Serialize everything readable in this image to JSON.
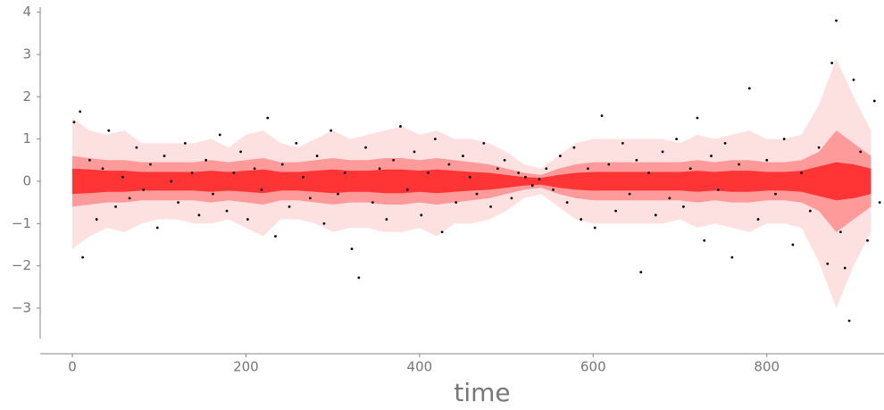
{
  "chart_data": {
    "type": "scatter",
    "x_label": "time",
    "xlim": [
      -37,
      935
    ],
    "ylim": [
      -3.72,
      4.12
    ],
    "xticks": [
      0,
      200,
      400,
      600,
      800
    ],
    "yticks": [
      {
        "value": -3,
        "label": "−3"
      },
      {
        "value": -2,
        "label": "−2"
      },
      {
        "value": -1,
        "label": "−1"
      },
      0,
      1,
      2,
      3,
      4
    ],
    "band_x": [
      0,
      20,
      40,
      60,
      80,
      100,
      120,
      140,
      160,
      180,
      200,
      220,
      240,
      260,
      280,
      300,
      320,
      340,
      360,
      380,
      400,
      420,
      440,
      460,
      480,
      500,
      520,
      540,
      560,
      580,
      600,
      620,
      640,
      660,
      680,
      700,
      720,
      740,
      760,
      780,
      800,
      820,
      840,
      860,
      880,
      900,
      920
    ],
    "bands": [
      {
        "color": "#fde0e0",
        "upper": [
          1.5,
          1.2,
          1.1,
          1.2,
          0.9,
          0.9,
          0.9,
          0.9,
          1.0,
          0.8,
          1.1,
          1.2,
          0.9,
          0.8,
          1.0,
          1.2,
          1.0,
          1.1,
          1.2,
          1.3,
          1.1,
          1.2,
          1.0,
          1.0,
          0.9,
          0.7,
          0.4,
          0.3,
          0.6,
          0.9,
          1.0,
          1.0,
          1.0,
          1.0,
          1.0,
          0.9,
          1.1,
          1.0,
          1.1,
          1.2,
          1.0,
          1.0,
          1.1,
          1.8,
          2.9,
          2.0,
          1.2
        ],
        "lower": [
          -1.6,
          -1.3,
          -1.1,
          -1.2,
          -1.0,
          -0.9,
          -0.9,
          -1.0,
          -1.0,
          -0.9,
          -1.1,
          -1.3,
          -0.9,
          -0.9,
          -1.0,
          -1.2,
          -1.1,
          -1.1,
          -1.2,
          -1.2,
          -1.1,
          -1.3,
          -1.0,
          -1.0,
          -0.9,
          -0.7,
          -0.4,
          -0.3,
          -0.6,
          -0.9,
          -1.0,
          -1.0,
          -1.0,
          -1.0,
          -1.0,
          -0.9,
          -1.1,
          -1.0,
          -1.1,
          -1.2,
          -1.0,
          -1.0,
          -1.1,
          -1.9,
          -3.0,
          -2.0,
          -1.2
        ]
      },
      {
        "color": "#ff9a9a",
        "upper": [
          0.6,
          0.55,
          0.5,
          0.5,
          0.45,
          0.45,
          0.45,
          0.45,
          0.5,
          0.45,
          0.5,
          0.55,
          0.45,
          0.45,
          0.5,
          0.55,
          0.5,
          0.5,
          0.55,
          0.55,
          0.5,
          0.55,
          0.5,
          0.45,
          0.4,
          0.3,
          0.2,
          0.15,
          0.3,
          0.4,
          0.45,
          0.45,
          0.45,
          0.45,
          0.45,
          0.45,
          0.5,
          0.45,
          0.5,
          0.5,
          0.45,
          0.45,
          0.5,
          0.7,
          1.2,
          0.9,
          0.6
        ],
        "lower": [
          -0.6,
          -0.55,
          -0.5,
          -0.5,
          -0.45,
          -0.45,
          -0.45,
          -0.45,
          -0.5,
          -0.45,
          -0.5,
          -0.55,
          -0.45,
          -0.45,
          -0.5,
          -0.55,
          -0.5,
          -0.5,
          -0.55,
          -0.55,
          -0.5,
          -0.55,
          -0.5,
          -0.45,
          -0.4,
          -0.3,
          -0.2,
          -0.15,
          -0.3,
          -0.4,
          -0.45,
          -0.45,
          -0.45,
          -0.45,
          -0.45,
          -0.45,
          -0.5,
          -0.45,
          -0.5,
          -0.5,
          -0.45,
          -0.45,
          -0.5,
          -0.7,
          -1.2,
          -0.9,
          -0.6
        ]
      },
      {
        "color": "#ff3535",
        "upper": [
          0.3,
          0.28,
          0.25,
          0.25,
          0.22,
          0.22,
          0.22,
          0.22,
          0.25,
          0.22,
          0.25,
          0.28,
          0.22,
          0.22,
          0.25,
          0.28,
          0.25,
          0.25,
          0.28,
          0.28,
          0.25,
          0.28,
          0.25,
          0.22,
          0.2,
          0.15,
          0.1,
          0.08,
          0.15,
          0.2,
          0.22,
          0.22,
          0.22,
          0.22,
          0.22,
          0.22,
          0.25,
          0.22,
          0.25,
          0.25,
          0.22,
          0.22,
          0.25,
          0.35,
          0.45,
          0.4,
          0.3
        ],
        "lower": [
          -0.3,
          -0.28,
          -0.25,
          -0.25,
          -0.22,
          -0.22,
          -0.22,
          -0.22,
          -0.25,
          -0.22,
          -0.25,
          -0.28,
          -0.22,
          -0.22,
          -0.25,
          -0.28,
          -0.25,
          -0.25,
          -0.28,
          -0.28,
          -0.25,
          -0.28,
          -0.25,
          -0.22,
          -0.2,
          -0.15,
          -0.1,
          -0.08,
          -0.15,
          -0.2,
          -0.22,
          -0.22,
          -0.22,
          -0.22,
          -0.22,
          -0.22,
          -0.25,
          -0.22,
          -0.25,
          -0.25,
          -0.22,
          -0.22,
          -0.25,
          -0.35,
          -0.45,
          -0.4,
          -0.3
        ]
      }
    ],
    "x": [
      2,
      9,
      12,
      20,
      28,
      35,
      42,
      50,
      58,
      66,
      74,
      82,
      90,
      98,
      106,
      114,
      122,
      130,
      138,
      146,
      154,
      162,
      170,
      178,
      186,
      194,
      202,
      210,
      218,
      225,
      234,
      242,
      250,
      258,
      266,
      274,
      282,
      290,
      298,
      306,
      314,
      322,
      330,
      338,
      346,
      354,
      362,
      370,
      378,
      386,
      394,
      402,
      410,
      418,
      426,
      434,
      442,
      450,
      458,
      466,
      474,
      482,
      490,
      498,
      506,
      514,
      522,
      530,
      538,
      546,
      554,
      562,
      570,
      578,
      586,
      594,
      602,
      610,
      618,
      626,
      634,
      642,
      650,
      655,
      664,
      672,
      680,
      688,
      696,
      704,
      712,
      720,
      728,
      736,
      744,
      752,
      760,
      768,
      780,
      790,
      800,
      810,
      820,
      830,
      840,
      850,
      860,
      870,
      875,
      880,
      885,
      890,
      895,
      900,
      908,
      916,
      924,
      930
    ],
    "series": [
      {
        "color": "#000000",
        "values": [
          1.4,
          1.65,
          -1.8,
          0.5,
          -0.9,
          0.3,
          1.2,
          -0.6,
          0.1,
          -0.4,
          0.8,
          -0.2,
          0.4,
          -1.1,
          0.6,
          0.0,
          -0.5,
          0.9,
          0.2,
          -0.8,
          0.5,
          -0.3,
          1.1,
          -0.7,
          0.2,
          0.7,
          -0.9,
          0.3,
          -0.2,
          1.5,
          -1.3,
          0.4,
          -0.6,
          0.9,
          0.1,
          -0.4,
          0.6,
          -1.0,
          1.2,
          -0.3,
          0.2,
          -1.6,
          -2.28,
          0.8,
          -0.5,
          0.3,
          -0.9,
          0.5,
          1.3,
          -0.2,
          0.7,
          -0.8,
          0.2,
          1.0,
          -1.2,
          0.4,
          -0.5,
          0.6,
          0.1,
          -0.3,
          0.9,
          -0.6,
          0.3,
          0.5,
          -0.4,
          0.2,
          0.1,
          -0.1,
          0.05,
          0.3,
          -0.2,
          0.6,
          -0.5,
          0.8,
          -0.9,
          0.3,
          -1.1,
          1.55,
          0.4,
          -0.7,
          0.9,
          -0.3,
          0.5,
          -2.15,
          0.2,
          -0.8,
          0.7,
          -0.4,
          1.0,
          -0.6,
          0.3,
          1.5,
          -1.4,
          0.6,
          -0.2,
          0.9,
          -1.8,
          0.4,
          2.2,
          -0.9,
          0.5,
          -0.3,
          1.0,
          -1.5,
          0.2,
          -0.7,
          0.8,
          -1.95,
          2.8,
          3.8,
          -1.2,
          -2.05,
          -3.3,
          2.4,
          0.7,
          -1.4,
          1.9,
          -0.5
        ]
      }
    ]
  }
}
